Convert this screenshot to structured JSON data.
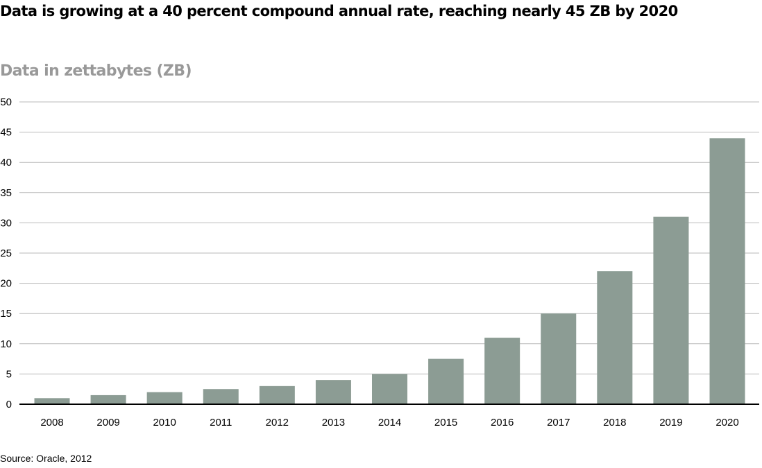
{
  "chart_data": {
    "type": "bar",
    "title": "Data is growing at a 40 percent compound annual rate, reaching nearly 45 ZB by 2020",
    "subtitle": "Data in zettabytes (ZB)",
    "categories": [
      "2008",
      "2009",
      "2010",
      "2011",
      "2012",
      "2013",
      "2014",
      "2015",
      "2016",
      "2017",
      "2018",
      "2019",
      "2020"
    ],
    "values": [
      1.0,
      1.5,
      2.0,
      2.5,
      3.0,
      4.0,
      5.0,
      7.5,
      11.0,
      15.0,
      22.0,
      31.0,
      44.0
    ],
    "ylim": [
      0,
      50
    ],
    "yticks": [
      "0",
      "5",
      "10",
      "15",
      "20",
      "25",
      "30",
      "35",
      "40",
      "45",
      "50"
    ],
    "grid": true,
    "bar_color": "#8c9c94",
    "source": "Source: Oracle, 2012"
  }
}
